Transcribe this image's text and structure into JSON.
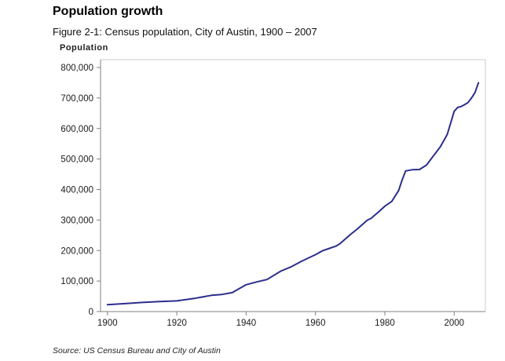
{
  "header": {
    "title": "Population growth",
    "subtitle": "Figure 2-1:  Census population, City of Austin, 1900 – 2007"
  },
  "chart_data": {
    "type": "line",
    "title": "Census population, City of Austin, 1900 – 2007",
    "xlabel": "",
    "ylabel": "Population",
    "xlim": [
      1898,
      2009
    ],
    "ylim": [
      0,
      800000
    ],
    "grid": false,
    "legend": "none",
    "line_color": "#2b2e8c",
    "axis_color": "#808080",
    "border_color": "#cccccc",
    "x_ticks": [
      {
        "value": 1900,
        "label": "1900"
      },
      {
        "value": 1920,
        "label": "1920"
      },
      {
        "value": 1940,
        "label": "1940"
      },
      {
        "value": 1960,
        "label": "1960"
      },
      {
        "value": 1980,
        "label": "1980"
      },
      {
        "value": 2000,
        "label": "2000"
      }
    ],
    "y_ticks": [
      {
        "value": 0,
        "label": "0"
      },
      {
        "value": 100000,
        "label": "100,000"
      },
      {
        "value": 200000,
        "label": "200,000"
      },
      {
        "value": 300000,
        "label": "300,000"
      },
      {
        "value": 400000,
        "label": "400,000"
      },
      {
        "value": 500000,
        "label": "500,000"
      },
      {
        "value": 600000,
        "label": "600,000"
      },
      {
        "value": 700000,
        "label": "700,000"
      },
      {
        "value": 800000,
        "label": "800,000"
      }
    ],
    "series": [
      {
        "name": "Census population",
        "points": [
          [
            1900,
            22258
          ],
          [
            1905,
            26000
          ],
          [
            1910,
            29860
          ],
          [
            1915,
            33000
          ],
          [
            1920,
            34876
          ],
          [
            1925,
            43000
          ],
          [
            1930,
            53120
          ],
          [
            1933,
            56000
          ],
          [
            1936,
            62000
          ],
          [
            1940,
            87930
          ],
          [
            1943,
            97000
          ],
          [
            1946,
            105000
          ],
          [
            1950,
            132459
          ],
          [
            1953,
            147000
          ],
          [
            1956,
            165000
          ],
          [
            1960,
            186545
          ],
          [
            1962,
            199000
          ],
          [
            1964,
            207000
          ],
          [
            1966,
            215000
          ],
          [
            1967,
            222000
          ],
          [
            1970,
            251808
          ],
          [
            1972,
            270000
          ],
          [
            1974,
            290000
          ],
          [
            1975,
            300000
          ],
          [
            1976,
            305000
          ],
          [
            1978,
            325000
          ],
          [
            1980,
            345496
          ],
          [
            1982,
            361000
          ],
          [
            1984,
            397000
          ],
          [
            1985,
            432000
          ],
          [
            1986,
            461000
          ],
          [
            1988,
            465000
          ],
          [
            1990,
            465622
          ],
          [
            1992,
            480000
          ],
          [
            1994,
            510000
          ],
          [
            1996,
            540000
          ],
          [
            1998,
            580000
          ],
          [
            2000,
            656562
          ],
          [
            2001,
            669000
          ],
          [
            2002,
            672000
          ],
          [
            2003,
            678000
          ],
          [
            2004,
            685000
          ],
          [
            2005,
            700000
          ],
          [
            2006,
            718000
          ],
          [
            2007,
            750000
          ]
        ]
      }
    ]
  },
  "footer": {
    "source": "Source: US Census Bureau and City of Austin"
  }
}
